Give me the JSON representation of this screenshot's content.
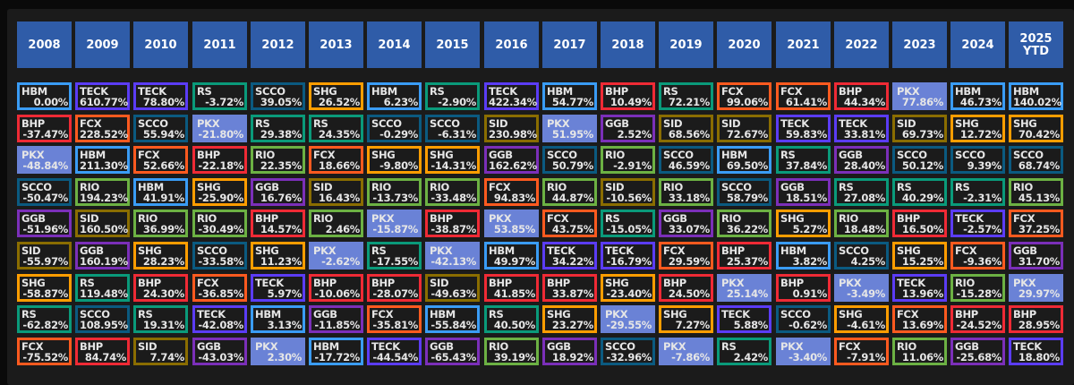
{
  "ticker_colors": {
    "HBM": "#3a9cf5",
    "TECK": "#5b3cf5",
    "RS": "#0a9a7a",
    "SCCO": "#0b5a80",
    "SHG": "#ff9d00",
    "BHP": "#ef2a35",
    "FCX": "#ff5a1f",
    "PKX": "#6a82d6",
    "RIO": "#6cb143",
    "SID": "#8a6d00",
    "GGB": "#7b2fb9"
  },
  "columns": [
    {
      "year": "2008",
      "cells": [
        [
          "HBM",
          "0.00%"
        ],
        [
          "BHP",
          "-37.47%"
        ],
        [
          "PKX",
          "-48.84%"
        ],
        [
          "SCCO",
          "-50.47%"
        ],
        [
          "GGB",
          "-51.96%"
        ],
        [
          "SID",
          "-55.97%"
        ],
        [
          "SHG",
          "-58.87%"
        ],
        [
          "RS",
          "-62.82%"
        ],
        [
          "FCX",
          "-75.52%"
        ]
      ]
    },
    {
      "year": "2009",
      "cells": [
        [
          "TECK",
          "610.77%"
        ],
        [
          "FCX",
          "228.52%"
        ],
        [
          "HBM",
          "211.30%"
        ],
        [
          "RIO",
          "194.23%"
        ],
        [
          "SID",
          "160.50%"
        ],
        [
          "GGB",
          "160.19%"
        ],
        [
          "RS",
          "119.48%"
        ],
        [
          "SCCO",
          "108.95%"
        ],
        [
          "BHP",
          "84.74%"
        ]
      ]
    },
    {
      "year": "2010",
      "cells": [
        [
          "TECK",
          "78.80%"
        ],
        [
          "SCCO",
          "55.94%"
        ],
        [
          "FCX",
          "52.66%"
        ],
        [
          "HBM",
          "41.91%"
        ],
        [
          "RIO",
          "36.99%"
        ],
        [
          "SHG",
          "28.23%"
        ],
        [
          "BHP",
          "24.30%"
        ],
        [
          "RS",
          "19.31%"
        ],
        [
          "SID",
          "7.74%"
        ]
      ]
    },
    {
      "year": "2011",
      "cells": [
        [
          "RS",
          "-3.72%"
        ],
        [
          "PKX",
          "-21.80%"
        ],
        [
          "BHP",
          "-22.18%"
        ],
        [
          "SHG",
          "-25.90%"
        ],
        [
          "RIO",
          "-30.49%"
        ],
        [
          "SCCO",
          "-33.58%"
        ],
        [
          "FCX",
          "-36.85%"
        ],
        [
          "TECK",
          "-42.08%"
        ],
        [
          "GGB",
          "-43.03%"
        ]
      ]
    },
    {
      "year": "2012",
      "cells": [
        [
          "SCCO",
          "39.05%"
        ],
        [
          "RS",
          "29.38%"
        ],
        [
          "RIO",
          "22.35%"
        ],
        [
          "GGB",
          "16.76%"
        ],
        [
          "BHP",
          "14.57%"
        ],
        [
          "SHG",
          "11.23%"
        ],
        [
          "TECK",
          "5.97%"
        ],
        [
          "HBM",
          "3.13%"
        ],
        [
          "PKX",
          "2.30%"
        ]
      ]
    },
    {
      "year": "2013",
      "cells": [
        [
          "SHG",
          "26.52%"
        ],
        [
          "RS",
          "24.35%"
        ],
        [
          "FCX",
          "18.66%"
        ],
        [
          "SID",
          "16.43%"
        ],
        [
          "RIO",
          "2.46%"
        ],
        [
          "PKX",
          "-2.62%"
        ],
        [
          "BHP",
          "-10.06%"
        ],
        [
          "GGB",
          "-11.85%"
        ],
        [
          "HBM",
          "-17.72%"
        ]
      ]
    },
    {
      "year": "2014",
      "cells": [
        [
          "HBM",
          "6.23%"
        ],
        [
          "SCCO",
          "-0.29%"
        ],
        [
          "SHG",
          "-9.80%"
        ],
        [
          "RIO",
          "-13.73%"
        ],
        [
          "PKX",
          "-15.87%"
        ],
        [
          "RS",
          "-17.55%"
        ],
        [
          "BHP",
          "-28.07%"
        ],
        [
          "FCX",
          "-35.81%"
        ],
        [
          "TECK",
          "-44.54%"
        ]
      ]
    },
    {
      "year": "2015",
      "cells": [
        [
          "RS",
          "-2.90%"
        ],
        [
          "SCCO",
          "-6.31%"
        ],
        [
          "SHG",
          "-14.31%"
        ],
        [
          "RIO",
          "-33.48%"
        ],
        [
          "BHP",
          "-38.87%"
        ],
        [
          "PKX",
          "-42.13%"
        ],
        [
          "SID",
          "-49.63%"
        ],
        [
          "HBM",
          "-55.84%"
        ],
        [
          "GGB",
          "-65.43%"
        ]
      ]
    },
    {
      "year": "2016",
      "cells": [
        [
          "TECK",
          "422.34%"
        ],
        [
          "SID",
          "230.98%"
        ],
        [
          "GGB",
          "162.62%"
        ],
        [
          "FCX",
          "94.83%"
        ],
        [
          "PKX",
          "53.85%"
        ],
        [
          "HBM",
          "49.97%"
        ],
        [
          "BHP",
          "41.85%"
        ],
        [
          "RS",
          "40.50%"
        ],
        [
          "RIO",
          "39.19%"
        ]
      ]
    },
    {
      "year": "2017",
      "cells": [
        [
          "HBM",
          "54.77%"
        ],
        [
          "PKX",
          "51.95%"
        ],
        [
          "SCCO",
          "50.79%"
        ],
        [
          "RIO",
          "44.87%"
        ],
        [
          "FCX",
          "43.75%"
        ],
        [
          "TECK",
          "34.22%"
        ],
        [
          "BHP",
          "33.87%"
        ],
        [
          "SHG",
          "23.27%"
        ],
        [
          "GGB",
          "18.92%"
        ]
      ]
    },
    {
      "year": "2018",
      "cells": [
        [
          "BHP",
          "10.49%"
        ],
        [
          "GGB",
          "2.52%"
        ],
        [
          "RIO",
          "-2.91%"
        ],
        [
          "SID",
          "-10.56%"
        ],
        [
          "RS",
          "-15.05%"
        ],
        [
          "TECK",
          "-16.79%"
        ],
        [
          "SHG",
          "-23.40%"
        ],
        [
          "PKX",
          "-29.55%"
        ],
        [
          "SCCO",
          "-32.96%"
        ]
      ]
    },
    {
      "year": "2019",
      "cells": [
        [
          "RS",
          "72.21%"
        ],
        [
          "SID",
          "68.56%"
        ],
        [
          "SCCO",
          "46.59%"
        ],
        [
          "RIO",
          "33.18%"
        ],
        [
          "GGB",
          "33.07%"
        ],
        [
          "FCX",
          "29.59%"
        ],
        [
          "BHP",
          "24.50%"
        ],
        [
          "SHG",
          "7.27%"
        ],
        [
          "PKX",
          "-7.86%"
        ]
      ]
    },
    {
      "year": "2020",
      "cells": [
        [
          "FCX",
          "99.06%"
        ],
        [
          "SID",
          "72.67%"
        ],
        [
          "HBM",
          "69.50%"
        ],
        [
          "SCCO",
          "58.79%"
        ],
        [
          "RIO",
          "36.22%"
        ],
        [
          "BHP",
          "25.37%"
        ],
        [
          "PKX",
          "25.14%"
        ],
        [
          "TECK",
          "5.88%"
        ],
        [
          "RS",
          "2.42%"
        ]
      ]
    },
    {
      "year": "2021",
      "cells": [
        [
          "FCX",
          "61.41%"
        ],
        [
          "TECK",
          "59.83%"
        ],
        [
          "RS",
          "37.84%"
        ],
        [
          "GGB",
          "18.51%"
        ],
        [
          "SHG",
          "5.27%"
        ],
        [
          "HBM",
          "3.82%"
        ],
        [
          "BHP",
          "0.91%"
        ],
        [
          "SCCO",
          "-0.62%"
        ],
        [
          "PKX",
          "-3.40%"
        ]
      ]
    },
    {
      "year": "2022",
      "cells": [
        [
          "BHP",
          "44.34%"
        ],
        [
          "TECK",
          "33.81%"
        ],
        [
          "GGB",
          "28.40%"
        ],
        [
          "RS",
          "27.08%"
        ],
        [
          "RIO",
          "18.48%"
        ],
        [
          "SCCO",
          "4.25%"
        ],
        [
          "PKX",
          "-3.49%"
        ],
        [
          "SHG",
          "-4.61%"
        ],
        [
          "FCX",
          "-7.91%"
        ]
      ]
    },
    {
      "year": "2023",
      "cells": [
        [
          "PKX",
          "77.86%"
        ],
        [
          "SID",
          "69.73%"
        ],
        [
          "SCCO",
          "50.12%"
        ],
        [
          "RS",
          "40.29%"
        ],
        [
          "BHP",
          "16.50%"
        ],
        [
          "SHG",
          "15.25%"
        ],
        [
          "TECK",
          "13.96%"
        ],
        [
          "FCX",
          "13.69%"
        ],
        [
          "RIO",
          "11.06%"
        ]
      ]
    },
    {
      "year": "2024",
      "cells": [
        [
          "HBM",
          "46.73%"
        ],
        [
          "SHG",
          "12.72%"
        ],
        [
          "SCCO",
          "9.39%"
        ],
        [
          "RS",
          "-2.31%"
        ],
        [
          "TECK",
          "-2.57%"
        ],
        [
          "FCX",
          "-9.36%"
        ],
        [
          "RIO",
          "-15.28%"
        ],
        [
          "BHP",
          "-24.52%"
        ],
        [
          "GGB",
          "-25.68%"
        ]
      ]
    },
    {
      "year": "2025\nYTD",
      "cells": [
        [
          "HBM",
          "140.02%"
        ],
        [
          "SHG",
          "70.42%"
        ],
        [
          "SCCO",
          "68.74%"
        ],
        [
          "RIO",
          "45.13%"
        ],
        [
          "FCX",
          "37.25%"
        ],
        [
          "GGB",
          "31.70%"
        ],
        [
          "PKX",
          "29.97%"
        ],
        [
          "BHP",
          "28.95%"
        ],
        [
          "TECK",
          "18.80%"
        ]
      ]
    }
  ]
}
